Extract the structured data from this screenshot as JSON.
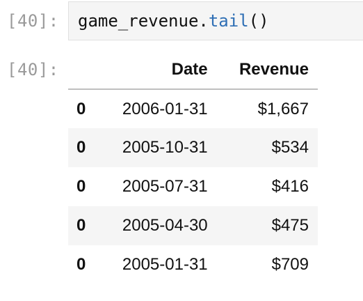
{
  "cell": {
    "in_prompt": "[40]:",
    "out_prompt": "[40]:",
    "code_object": "game_revenue.",
    "code_method": "tail",
    "code_args": "()"
  },
  "table": {
    "columns": [
      "Date",
      "Revenue"
    ],
    "rows": [
      {
        "index": "0",
        "date": "2006-01-31",
        "revenue": "$1,667"
      },
      {
        "index": "0",
        "date": "2005-10-31",
        "revenue": "$534"
      },
      {
        "index": "0",
        "date": "2005-07-31",
        "revenue": "$416"
      },
      {
        "index": "0",
        "date": "2005-04-30",
        "revenue": "$475"
      },
      {
        "index": "0",
        "date": "2005-01-31",
        "revenue": "$709"
      }
    ]
  },
  "colors": {
    "method_color": "#2f6fb5",
    "prompt_color": "#9a9a9a",
    "stripe_color": "#f5f5f5"
  }
}
